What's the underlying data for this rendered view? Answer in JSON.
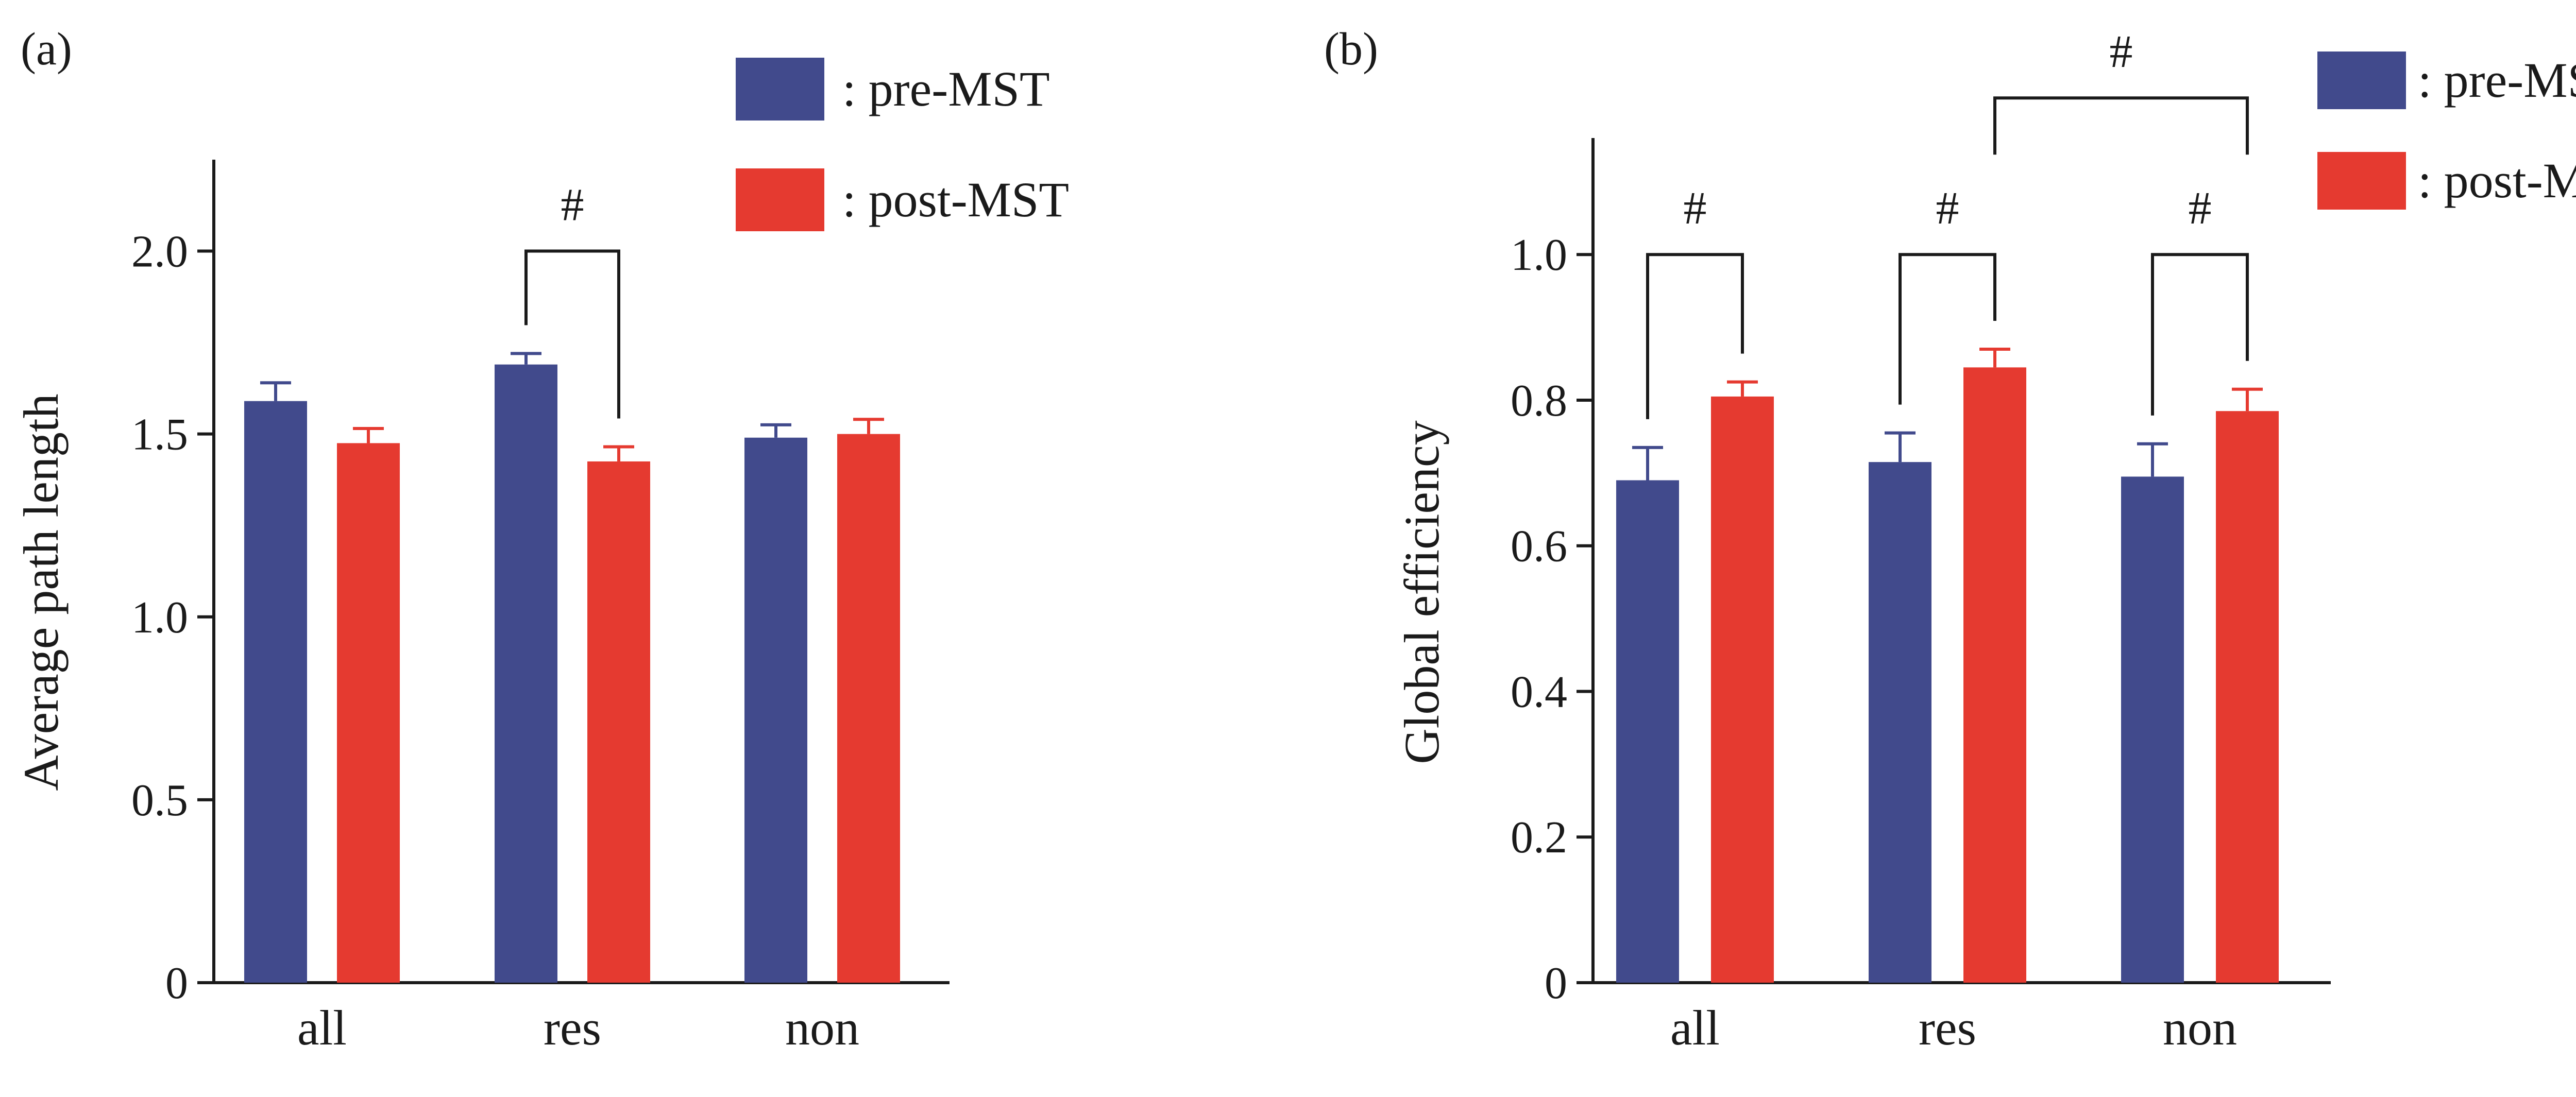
{
  "colors": {
    "pre": "#414a8c",
    "post": "#e53a30"
  },
  "chart_data": [
    {
      "type": "bar",
      "panel_label": "(a)",
      "categories": [
        "all",
        "res",
        "non"
      ],
      "ylabel": "Average path length",
      "xlabel": "",
      "ylim": [
        0,
        2.25
      ],
      "yticks": [
        0,
        0.5,
        1.0,
        1.5,
        2.0
      ],
      "ytick_labels": [
        "0",
        "0.5",
        "1.0",
        "1.5",
        "2.0"
      ],
      "series": [
        {
          "name": ": pre-MST",
          "values": [
            1.59,
            1.69,
            1.49
          ],
          "errors": [
            0.05,
            0.03,
            0.035
          ]
        },
        {
          "name": ": post-MST",
          "values": [
            1.475,
            1.425,
            1.5
          ],
          "errors": [
            0.04,
            0.04,
            0.04
          ]
        }
      ],
      "significance": [
        {
          "label": "#",
          "from": [
            1,
            0
          ],
          "to": [
            1,
            1
          ],
          "level": 2.0
        }
      ],
      "legend_position": "top-right",
      "grid": false
    },
    {
      "type": "bar",
      "panel_label": "(b)",
      "categories": [
        "all",
        "res",
        "non"
      ],
      "ylabel": "Global efficiency",
      "xlabel": "",
      "ylim": [
        0,
        1.16
      ],
      "yticks": [
        0,
        0.2,
        0.4,
        0.6,
        0.8,
        1.0
      ],
      "ytick_labels": [
        "0",
        "0.2",
        "0.4",
        "0.6",
        "0.8",
        "1.0"
      ],
      "series": [
        {
          "name": ": pre-MST",
          "values": [
            0.69,
            0.715,
            0.695
          ],
          "errors": [
            0.045,
            0.04,
            0.045
          ]
        },
        {
          "name": ": post-MST",
          "values": [
            0.805,
            0.845,
            0.785
          ],
          "errors": [
            0.02,
            0.025,
            0.03
          ]
        }
      ],
      "significance": [
        {
          "label": "#",
          "from": [
            0,
            0
          ],
          "to": [
            0,
            1
          ],
          "level": 1.0
        },
        {
          "label": "#",
          "from": [
            1,
            0
          ],
          "to": [
            1,
            1
          ],
          "level": 1.0
        },
        {
          "label": "#",
          "from": [
            2,
            0
          ],
          "to": [
            2,
            1
          ],
          "level": 1.0
        },
        {
          "label": "#",
          "from": [
            1,
            1
          ],
          "to": [
            2,
            1
          ],
          "level": 1.215
        }
      ],
      "legend_position": "top-right",
      "grid": false
    }
  ]
}
